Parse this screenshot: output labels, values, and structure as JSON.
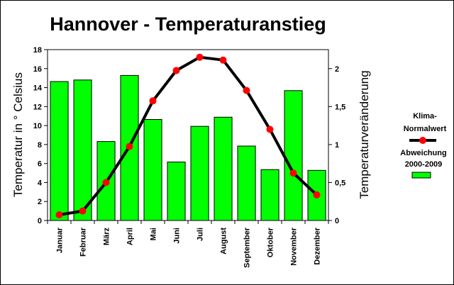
{
  "chart_data": {
    "type": "bar",
    "title": "Hannover - Temperaturanstieg",
    "categories": [
      "Januar",
      "Februar",
      "März",
      "April",
      "Mai",
      "Juni",
      "Juli",
      "August",
      "September",
      "Oktober",
      "November",
      "Dezember"
    ],
    "ylabel": "Temperatur in ° Celsius",
    "y2label": "Temperaturveränderung",
    "ylim": [
      0,
      18
    ],
    "y2lim": [
      0,
      2.25
    ],
    "yticks": [
      "0",
      "2",
      "4",
      "6",
      "8",
      "10",
      "12",
      "14",
      "16",
      "18"
    ],
    "y2ticks": [
      "0",
      "0,5",
      "1",
      "1,5",
      "2"
    ],
    "grid": false,
    "legend_position": "right",
    "series": [
      {
        "name": "Klima-Normalwert",
        "type": "line",
        "axis": "left",
        "color": "#000000",
        "marker_color": "#ff0000",
        "values": [
          0.6,
          1.0,
          4.0,
          7.8,
          12.6,
          15.8,
          17.2,
          16.9,
          13.7,
          9.6,
          5.0,
          2.7
        ]
      },
      {
        "name": "Abweichung 2000-2009",
        "type": "bar",
        "axis": "right",
        "color": "#00ff00",
        "values": [
          1.83,
          1.85,
          1.04,
          1.91,
          1.33,
          0.77,
          1.24,
          1.36,
          0.98,
          0.67,
          1.71,
          0.66
        ]
      }
    ]
  },
  "legend": {
    "line_label_1": "Klima-",
    "line_label_2": "Normalwert",
    "bar_label_1": "Abweichung",
    "bar_label_2": "2000-2009"
  }
}
